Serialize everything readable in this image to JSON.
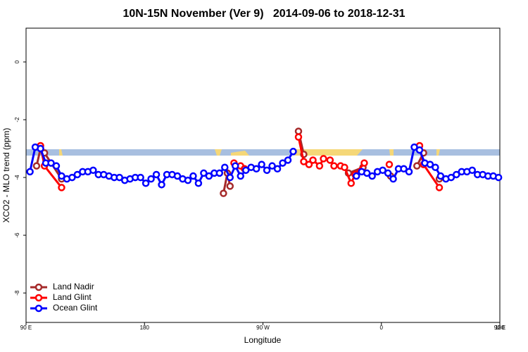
{
  "chart_data": {
    "type": "line",
    "title": "10N-15N November (Ver 9)   2014-09-06 to 2018-12-31",
    "x_label": "Longitude",
    "y_label": "XCO2 - MLO trend (ppm)",
    "xlim": [
      90,
      450
    ],
    "ylim": [
      -9.02,
      1.17
    ],
    "xticks": [
      {
        "value": 90,
        "label": "90 E"
      },
      180,
      {
        "value": 270,
        "label": "90 W"
      },
      {
        "value": 360,
        "label": "0"
      },
      {
        "value": 450,
        "label": "90 E"
      },
      {
        "value": 540,
        "label": "180"
      }
    ],
    "yticks": [
      0,
      -2,
      -4,
      -6,
      -8
    ],
    "legend": "bottom-left",
    "series": [
      {
        "name": "Land Nadir",
        "color": "#a52a2a",
        "x": [
          98,
          101,
          104,
          117,
          180,
          240,
          243,
          245,
          270,
          297,
          301,
          318,
          335,
          346,
          356,
          367,
          377,
          387,
          392,
          398,
          404
        ],
        "values": [
          -3.6,
          -3.0,
          -3.15,
          -4.05,
          null,
          -4.55,
          -3.85,
          -4.3,
          null,
          -2.4,
          -3.2,
          null,
          -3.85,
          -3.65,
          null,
          -3.95,
          null,
          -3.6,
          -3.15,
          null,
          -4.05
        ]
      },
      {
        "name": "Land Glint",
        "color": "#ff0000",
        "x": [
          101,
          104,
          117,
          180,
          248,
          253,
          256,
          280,
          297,
          301,
          305,
          308,
          313,
          316,
          321,
          324,
          329,
          332,
          337,
          340,
          347,
          355,
          366,
          380,
          389,
          392,
          404
        ],
        "values": [
          -2.9,
          -3.6,
          -4.35,
          null,
          -3.5,
          -3.6,
          -3.7,
          null,
          -2.6,
          -3.45,
          -3.55,
          -3.4,
          -3.6,
          -3.35,
          -3.4,
          -3.6,
          -3.6,
          -3.65,
          -4.2,
          -3.9,
          -3.5,
          null,
          -3.55,
          null,
          -2.9,
          -3.55,
          -4.35
        ]
      },
      {
        "name": "Ocean Glint",
        "color": "#0000ff",
        "x": [
          93,
          97,
          101,
          105,
          109,
          113,
          117,
          121,
          125,
          129,
          133,
          137,
          141,
          145,
          149,
          153,
          157,
          161,
          165,
          169,
          173,
          177,
          181,
          185,
          189,
          193,
          197,
          201,
          205,
          209,
          213,
          217,
          221,
          225,
          229,
          233,
          237,
          241,
          245,
          249,
          253,
          257,
          261,
          265,
          269,
          273,
          277,
          281,
          285,
          289,
          293,
          317,
          341,
          345,
          349,
          353,
          357,
          361,
          365,
          369,
          373,
          377,
          381,
          385,
          389,
          393,
          397,
          401,
          405,
          409,
          413,
          417,
          421,
          425,
          429,
          433,
          437,
          441,
          445,
          449
        ],
        "values": [
          -3.8,
          -2.95,
          -3.0,
          -3.5,
          -3.5,
          -3.6,
          -3.95,
          -4.05,
          -4.0,
          -3.9,
          -3.8,
          -3.8,
          -3.75,
          -3.9,
          -3.9,
          -3.95,
          -4.0,
          -4.0,
          -4.1,
          -4.05,
          -4.0,
          -4.0,
          -4.2,
          -4.05,
          -3.9,
          -4.25,
          -3.9,
          -3.9,
          -3.95,
          -4.05,
          -4.1,
          -3.95,
          -4.2,
          -3.85,
          -3.95,
          -3.85,
          -3.85,
          -3.65,
          -4.0,
          -3.6,
          -3.95,
          -3.75,
          -3.65,
          -3.7,
          -3.55,
          -3.75,
          -3.6,
          -3.7,
          -3.5,
          -3.4,
          -3.1,
          null,
          -3.95,
          -3.8,
          -3.85,
          -3.95,
          -3.8,
          -3.75,
          -3.85,
          -4.05,
          -3.7,
          -3.7,
          -3.8,
          -2.95,
          -3.05,
          -3.5,
          -3.55,
          -3.65,
          -3.95,
          -4.05,
          -4.0,
          -3.9,
          -3.8,
          -3.8,
          -3.75,
          -3.9,
          -3.9,
          -3.95,
          -3.95,
          -4.0
        ]
      }
    ]
  }
}
